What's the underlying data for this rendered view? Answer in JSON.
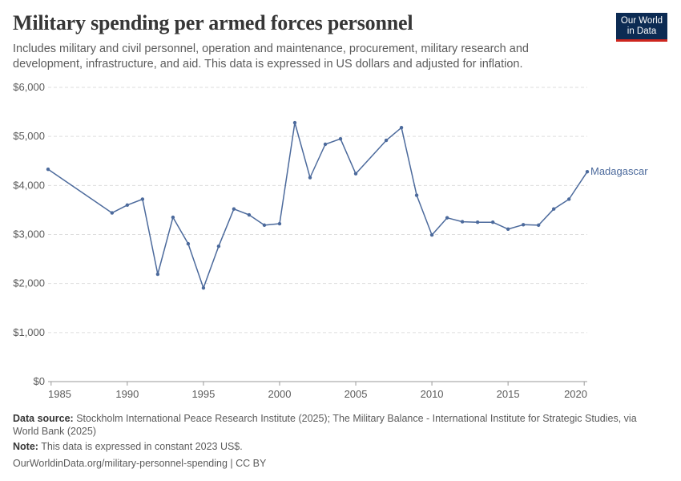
{
  "header": {
    "title": "Military spending per armed forces personnel",
    "subtitle": "Includes military and civil personnel, operation and maintenance, procurement, military research and development, infrastructure, and aid. This data is expressed in US dollars and adjusted for inflation.",
    "logo_line1": "Our World",
    "logo_line2": "in Data"
  },
  "footer": {
    "source_label": "Data source:",
    "source_text": "Stockholm International Peace Research Institute (2025); The Military Balance - International Institute for Strategic Studies, via World Bank (2025)",
    "note_label": "Note:",
    "note_text": "This data is expressed in constant 2023 US$.",
    "url": "OurWorldinData.org/military-personnel-spending | CC BY"
  },
  "colors": {
    "line": "#4c6a9c",
    "grid": "#dddddd",
    "text": "#5b5b5b",
    "logo_bg": "#0c2b53",
    "logo_accent": "#ce261e"
  },
  "chart_data": {
    "type": "line",
    "x_ticks": [
      1985,
      1990,
      1995,
      2000,
      2005,
      2010,
      2015,
      2020
    ],
    "y_ticks": [
      0,
      1000,
      2000,
      3000,
      4000,
      5000,
      6000
    ],
    "y_tick_labels": [
      "$0",
      "$1,000",
      "$2,000",
      "$3,000",
      "$4,000",
      "$5,000",
      "$6,000"
    ],
    "xlim": [
      1984.8,
      2020.2
    ],
    "ylim": [
      0,
      6000
    ],
    "grid": "horizontal dashed",
    "series": [
      {
        "name": "Madagascar",
        "x": [
          1984.8,
          1989,
          1990,
          1991,
          1992,
          1993,
          1994,
          1995,
          1996,
          1997,
          1998,
          1999,
          2000,
          2001,
          2002,
          2003,
          2004,
          2005,
          2007,
          2008,
          2009,
          2010,
          2011,
          2012,
          2013,
          2014,
          2015,
          2016,
          2017,
          2018,
          2019,
          2020.2
        ],
        "values": [
          4330,
          3440,
          3600,
          3720,
          2190,
          3350,
          2810,
          1910,
          2760,
          3520,
          3400,
          3190,
          3220,
          5280,
          4160,
          4840,
          4950,
          4240,
          4920,
          5180,
          3800,
          2990,
          3340,
          3260,
          3250,
          3250,
          3110,
          3200,
          3190,
          3520,
          3720,
          4280
        ]
      }
    ]
  }
}
